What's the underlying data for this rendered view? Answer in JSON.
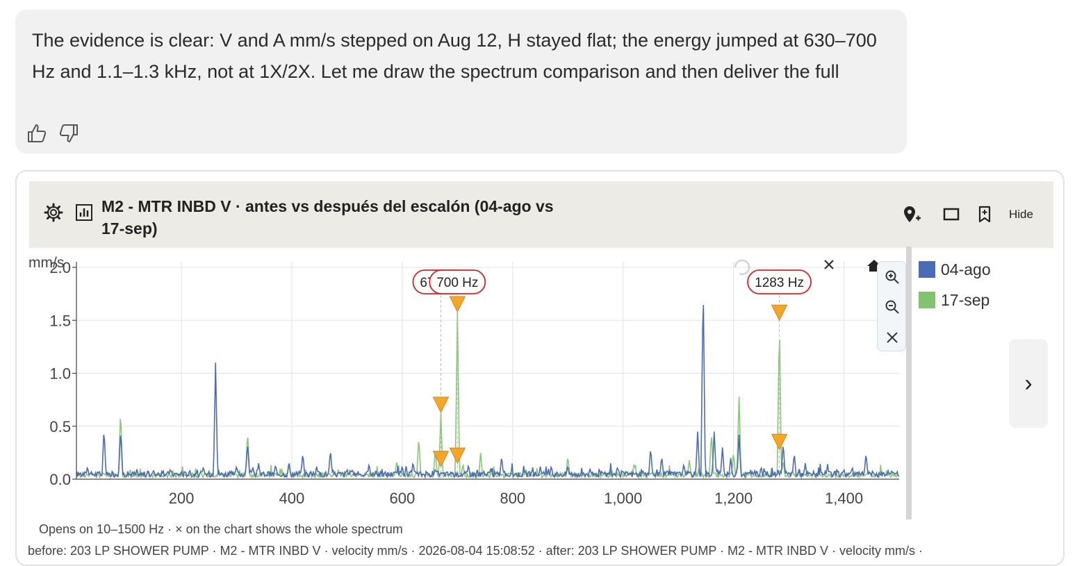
{
  "message": {
    "text": "The evidence is clear: V and A mm/s stepped on Aug 12, H stayed flat; the energy jumped at 630–700 Hz and 1.1–1.3 kHz, not at 1X/2X. Let me draw the spectrum comparison and then deliver the full"
  },
  "card": {
    "title": "M2 - MTR INBD V · antes vs después del escalón (04-ago vs 17-sep)",
    "hide_label": "Hide",
    "note": "Opens on 10–1500 Hz · × on the chart shows the whole spectrum",
    "meta": "before: 203 LP SHOWER PUMP · M2 - MTR INBD V · velocity mm/s · 2026-08-04 15:08:52 · after: 203 LP SHOWER PUMP · M2 - MTR INBD V · velocity mm/s ·",
    "next_label": "›"
  },
  "chart_data": {
    "type": "line",
    "ylabel": "mm/s",
    "xlim": [
      10,
      1500
    ],
    "ylim": [
      0,
      2.0
    ],
    "x_ticks": [
      200,
      400,
      600,
      800,
      1000,
      1200,
      1400
    ],
    "x_tick_labels": [
      "200",
      "400",
      "600",
      "800",
      "1,000",
      "1,200",
      "1,400"
    ],
    "y_ticks": [
      0,
      0.5,
      1.0,
      1.5,
      2.0
    ],
    "y_tick_labels": [
      "0.0",
      "0.5",
      "1.0",
      "1.5",
      "2.0"
    ],
    "grid": true,
    "legend_position": "right",
    "series": [
      {
        "name": "04-ago",
        "color": "#4a6bb8",
        "baseline": 0.05,
        "peaks": [
          [
            30,
            0.12
          ],
          [
            60,
            0.48
          ],
          [
            90,
            0.47
          ],
          [
            120,
            0.08
          ],
          [
            150,
            0.09
          ],
          [
            180,
            0.1
          ],
          [
            200,
            0.08
          ],
          [
            215,
            0.09
          ],
          [
            240,
            0.12
          ],
          [
            262,
            1.1
          ],
          [
            300,
            0.13
          ],
          [
            320,
            0.35
          ],
          [
            340,
            0.15
          ],
          [
            370,
            0.12
          ],
          [
            395,
            0.17
          ],
          [
            420,
            0.25
          ],
          [
            445,
            0.12
          ],
          [
            470,
            0.28
          ],
          [
            500,
            0.1
          ],
          [
            540,
            0.15
          ],
          [
            600,
            0.13
          ],
          [
            620,
            0.15
          ],
          [
            660,
            0.1
          ],
          [
            720,
            0.14
          ],
          [
            760,
            0.1
          ],
          [
            780,
            0.22
          ],
          [
            820,
            0.1
          ],
          [
            850,
            0.12
          ],
          [
            870,
            0.13
          ],
          [
            900,
            0.13
          ],
          [
            940,
            0.1
          ],
          [
            990,
            0.12
          ],
          [
            1050,
            0.3
          ],
          [
            1070,
            0.22
          ],
          [
            1110,
            0.15
          ],
          [
            1135,
            0.45
          ],
          [
            1145,
            1.88
          ],
          [
            1165,
            0.45
          ],
          [
            1180,
            0.3
          ],
          [
            1195,
            0.2
          ],
          [
            1210,
            0.42
          ],
          [
            1250,
            0.12
          ],
          [
            1290,
            0.35
          ],
          [
            1310,
            0.25
          ],
          [
            1330,
            0.15
          ],
          [
            1370,
            0.12
          ],
          [
            1400,
            0.1
          ],
          [
            1440,
            0.25
          ],
          [
            1480,
            0.08
          ]
        ]
      },
      {
        "name": "17-sep",
        "color": "#82c46e",
        "baseline": 0.04,
        "peaks": [
          [
            90,
            0.65
          ],
          [
            235,
            0.08
          ],
          [
            320,
            0.45
          ],
          [
            395,
            0.15
          ],
          [
            590,
            0.18
          ],
          [
            630,
            0.4
          ],
          [
            660,
            0.28
          ],
          [
            670,
            0.63
          ],
          [
            700,
            1.58
          ],
          [
            710,
            0.15
          ],
          [
            742,
            0.25
          ],
          [
            900,
            0.22
          ],
          [
            1020,
            0.15
          ],
          [
            1120,
            0.18
          ],
          [
            1160,
            0.45
          ],
          [
            1200,
            0.26
          ],
          [
            1210,
            0.78
          ],
          [
            1283,
            1.5
          ],
          [
            1290,
            0.18
          ]
        ]
      }
    ],
    "markers": [
      {
        "label": "670 Hz",
        "x": 670,
        "y": 0.63,
        "show_label": true
      },
      {
        "label": "700 Hz",
        "x": 700,
        "y": 1.58,
        "show_label": true
      },
      {
        "label": "1283 Hz",
        "x": 1283,
        "y": 1.5,
        "show_label": true
      },
      {
        "label": "",
        "x": 670,
        "y": 0.12,
        "show_label": false
      },
      {
        "label": "",
        "x": 700,
        "y": 0.15,
        "show_label": false
      },
      {
        "label": "",
        "x": 1283,
        "y": 0.28,
        "show_label": false
      }
    ]
  },
  "colors": {
    "marker_fill": "#f5a623",
    "marker_stroke": "#d9822b",
    "label_border": "#e02020",
    "header_bg": "#edebe6"
  },
  "icons": {
    "settings": "gear-icon",
    "chart": "bar-chart-icon",
    "add_marker": "map-pin-plus-icon",
    "maximize": "window-icon",
    "bookmark": "bookmark-plus-icon",
    "zoom_in": "zoom-in-icon",
    "zoom_out": "zoom-out-icon",
    "reset": "close-icon",
    "home": "home-icon",
    "thumbs_up": "thumbs-up-icon",
    "thumbs_down": "thumbs-down-icon"
  }
}
